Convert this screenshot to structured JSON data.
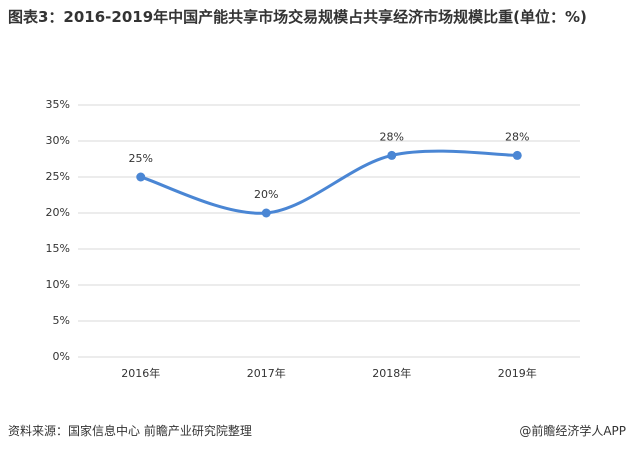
{
  "chart_data": {
    "type": "line",
    "title": "图表3：2016-2019年中国产能共享市场交易规模占共享经济市场规模比重(单位：%)",
    "categories": [
      "2016年",
      "2017年",
      "2018年",
      "2019年"
    ],
    "values": [
      25,
      20,
      28,
      28
    ],
    "value_labels": [
      "25%",
      "20%",
      "28%",
      "28%"
    ],
    "color": "#4a86d4",
    "ylim": [
      0,
      35
    ],
    "yticks": [
      {
        "value": 0,
        "label": "0%"
      },
      {
        "value": 5,
        "label": "5%"
      },
      {
        "value": 10,
        "label": "10%"
      },
      {
        "value": 15,
        "label": "15%"
      },
      {
        "value": 20,
        "label": "20%"
      },
      {
        "value": 25,
        "label": "25%"
      },
      {
        "value": 30,
        "label": "30%"
      },
      {
        "value": 35,
        "label": "35%"
      }
    ],
    "grid": true,
    "source": "资料来源：国家信息中心 前瞻产业研究院整理",
    "brand": "@前瞻经济学人APP"
  }
}
